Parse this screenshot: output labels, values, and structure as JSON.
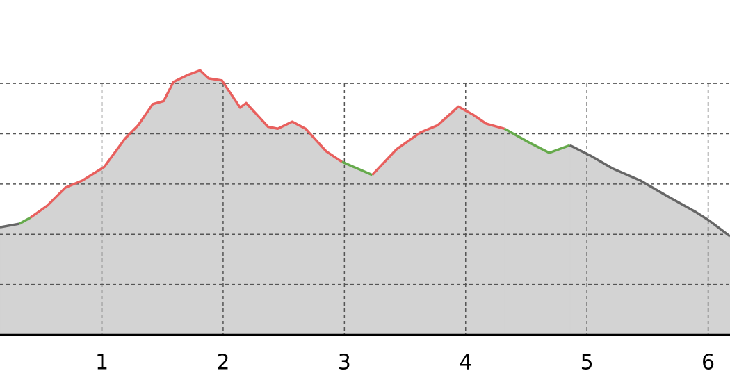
{
  "chart_data": {
    "type": "area-line",
    "x": [
      0.16,
      0.32,
      0.41,
      0.55,
      0.7,
      0.84,
      1.02,
      1.19,
      1.3,
      1.42,
      1.51,
      1.59,
      1.71,
      1.81,
      1.88,
      1.99,
      2.14,
      2.19,
      2.37,
      2.45,
      2.57,
      2.68,
      2.85,
      2.98,
      3.23,
      3.43,
      3.63,
      3.77,
      3.94,
      4.06,
      4.17,
      4.32,
      4.52,
      4.69,
      4.86,
      5.04,
      5.21,
      5.44,
      5.67,
      5.9,
      6.01,
      6.18
    ],
    "series": [
      {
        "color": "#666666",
        "values": [
          2.14,
          2.21,
          null,
          null,
          null,
          null,
          null,
          null,
          null,
          null,
          null,
          null,
          null,
          null,
          null,
          null,
          null,
          null,
          null,
          null,
          null,
          null,
          null,
          null,
          null,
          null,
          null,
          null,
          null,
          null,
          null,
          null,
          null,
          null,
          null,
          null,
          null,
          null,
          null,
          null,
          null,
          null
        ]
      },
      {
        "color": "#66aa4c",
        "values": [
          null,
          2.21,
          2.33,
          null,
          null,
          null,
          null,
          null,
          null,
          null,
          null,
          null,
          null,
          null,
          null,
          null,
          null,
          null,
          null,
          null,
          null,
          null,
          null,
          null,
          null,
          null,
          null,
          null,
          null,
          null,
          null,
          null,
          null,
          null,
          null,
          null,
          null,
          null,
          null,
          null,
          null,
          null
        ]
      },
      {
        "color": "#e8605e",
        "values": [
          null,
          null,
          2.33,
          2.57,
          2.93,
          3.07,
          3.34,
          3.9,
          4.17,
          4.59,
          4.65,
          5.03,
          5.17,
          5.26,
          5.1,
          5.06,
          4.52,
          4.61,
          4.14,
          4.1,
          4.24,
          4.1,
          3.65,
          3.44,
          null,
          null,
          null,
          null,
          null,
          null,
          null,
          null,
          null,
          null,
          null,
          null,
          null,
          null,
          null,
          null,
          null,
          null
        ]
      },
      {
        "color": "#66aa4c",
        "values": [
          null,
          null,
          null,
          null,
          null,
          null,
          null,
          null,
          null,
          null,
          null,
          null,
          null,
          null,
          null,
          null,
          null,
          null,
          null,
          null,
          null,
          null,
          null,
          3.44,
          3.18,
          null,
          null,
          null,
          null,
          null,
          null,
          null,
          null,
          null,
          null,
          null,
          null,
          null,
          null,
          null,
          null,
          null
        ]
      },
      {
        "color": "#e8605e",
        "values": [
          null,
          null,
          null,
          null,
          null,
          null,
          null,
          null,
          null,
          null,
          null,
          null,
          null,
          null,
          null,
          null,
          null,
          null,
          null,
          null,
          null,
          null,
          null,
          null,
          3.18,
          3.69,
          4.03,
          4.17,
          4.54,
          4.38,
          4.2,
          4.1,
          null,
          null,
          null,
          null,
          null,
          null,
          null,
          null,
          null,
          null
        ]
      },
      {
        "color": "#66aa4c",
        "values": [
          null,
          null,
          null,
          null,
          null,
          null,
          null,
          null,
          null,
          null,
          null,
          null,
          null,
          null,
          null,
          null,
          null,
          null,
          null,
          null,
          null,
          null,
          null,
          null,
          null,
          null,
          null,
          null,
          null,
          null,
          null,
          4.1,
          3.83,
          3.62,
          3.77,
          null,
          null,
          null,
          null,
          null,
          null,
          null
        ]
      },
      {
        "color": "#666666",
        "values": [
          null,
          null,
          null,
          null,
          null,
          null,
          null,
          null,
          null,
          null,
          null,
          null,
          null,
          null,
          null,
          null,
          null,
          null,
          null,
          null,
          null,
          null,
          null,
          null,
          null,
          null,
          null,
          null,
          null,
          null,
          null,
          null,
          null,
          null,
          3.77,
          3.55,
          3.31,
          3.07,
          2.75,
          2.44,
          2.27,
          1.96
        ]
      }
    ],
    "area_color": "#d3d3d3",
    "xlim": [
      0.16,
      6.18
    ],
    "xticks": [
      1,
      2,
      3,
      4,
      5,
      6
    ],
    "ylim": [
      0,
      6.66
    ],
    "yticks": [
      1,
      2,
      3,
      4,
      5
    ],
    "grid": true
  }
}
